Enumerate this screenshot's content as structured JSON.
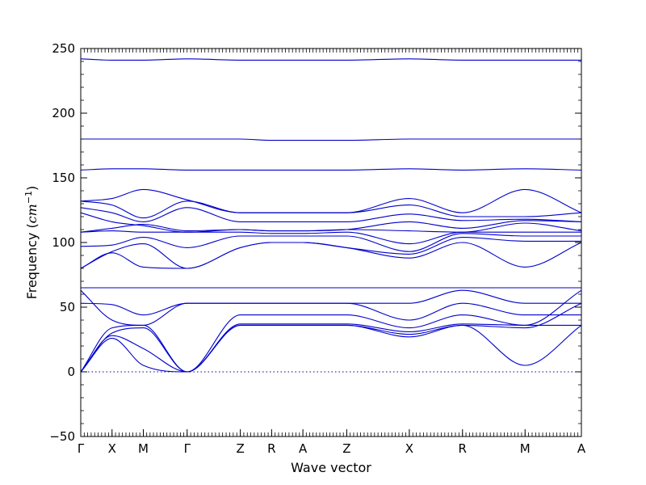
{
  "chart_data": {
    "type": "line",
    "title": "",
    "xlabel": "Wave vector",
    "ylabel": "Frequency (",
    "ylabel_unit": "cm",
    "ylabel_exp": "−1",
    "ylabel_close": ")",
    "ylim": [
      -50,
      250
    ],
    "yticks": [
      -50,
      0,
      50,
      100,
      150,
      200,
      250
    ],
    "xlim": [
      0,
      16
    ],
    "kpoints": [
      {
        "label": "Γ",
        "x": 0
      },
      {
        "label": "X",
        "x": 1
      },
      {
        "label": "M",
        "x": 2
      },
      {
        "label": "Γ",
        "x": 3.4
      },
      {
        "label": "Z",
        "x": 5.1
      },
      {
        "label": "R",
        "x": 6.1
      },
      {
        "label": "A",
        "x": 7.1
      },
      {
        "label": "Z",
        "x": 8.5
      },
      {
        "label": "X",
        "x": 10.5
      },
      {
        "label": "R",
        "x": 12.2
      },
      {
        "label": "M",
        "x": 14.2
      },
      {
        "label": "A",
        "x": 16
      }
    ],
    "zero_line": 0,
    "grid": false,
    "legend": "none",
    "line_color": "#0000cc",
    "zero_line_color": "#000088",
    "series": [
      {
        "x": [
          0,
          1,
          2,
          3.4,
          5.1,
          6.1,
          7.1,
          8.5,
          10.5,
          12.2,
          14.2,
          16
        ],
        "values": [
          0,
          26,
          5,
          0,
          36,
          36,
          36,
          36,
          27,
          36,
          5,
          36
        ]
      },
      {
        "x": [
          0,
          1,
          2,
          3.4,
          5.1,
          6.1,
          7.1,
          8.5,
          10.5,
          12.2,
          14.2,
          16
        ],
        "values": [
          0,
          28,
          18,
          0,
          36,
          36,
          36,
          36,
          29,
          36,
          34,
          53
        ]
      },
      {
        "x": [
          0,
          1,
          2,
          3.4,
          5.1,
          6.1,
          7.1,
          8.5,
          10.5,
          12.2,
          14.2,
          16
        ],
        "values": [
          0,
          30,
          34,
          0,
          37,
          37,
          37,
          37,
          31,
          37,
          36,
          63
        ]
      },
      {
        "x": [
          0,
          1,
          2,
          3.4,
          5.1,
          6.1,
          7.1,
          8.5,
          10.5,
          12.2,
          14.2,
          16
        ],
        "values": [
          0,
          34,
          36,
          0,
          44,
          44,
          44,
          44,
          34,
          44,
          36,
          36
        ]
      },
      {
        "x": [
          0,
          1,
          2,
          3.4,
          5.1,
          6.1,
          7.1,
          8.5,
          10.5,
          12.2,
          14.2,
          16
        ],
        "values": [
          63,
          40,
          36,
          53,
          53,
          53,
          53,
          53,
          40,
          53,
          44,
          44
        ]
      },
      {
        "x": [
          0,
          1,
          2,
          3.4,
          5.1,
          6.1,
          7.1,
          8.5,
          10.5,
          12.2,
          14.2,
          16
        ],
        "values": [
          53,
          52,
          44,
          53,
          53,
          53,
          53,
          53,
          53,
          63,
          53,
          53
        ]
      },
      {
        "x": [
          0,
          1,
          2,
          3.4,
          5.1,
          6.1,
          7.1,
          8.5,
          10.5,
          12.2,
          14.2,
          16
        ],
        "values": [
          65,
          65,
          65,
          65,
          65,
          65,
          65,
          65,
          65,
          65,
          65,
          65
        ]
      },
      {
        "x": [
          0,
          1,
          2,
          3.4,
          5.1,
          6.1,
          7.1,
          8.5,
          10.5,
          12.2,
          14.2,
          16
        ],
        "values": [
          80,
          92,
          81,
          80,
          96,
          100,
          100,
          96,
          88,
          100,
          81,
          100
        ]
      },
      {
        "x": [
          0,
          1,
          2,
          3.4,
          5.1,
          6.1,
          7.1,
          8.5,
          10.5,
          12.2,
          14.2,
          16
        ],
        "values": [
          80,
          93,
          99,
          80,
          96,
          100,
          100,
          96,
          91,
          104,
          101,
          101
        ]
      },
      {
        "x": [
          0,
          1,
          2,
          3.4,
          5.1,
          6.1,
          7.1,
          8.5,
          10.5,
          12.2,
          14.2,
          16
        ],
        "values": [
          97,
          98,
          104,
          96,
          105,
          105,
          105,
          105,
          93,
          107,
          105,
          105
        ]
      },
      {
        "x": [
          0,
          1,
          2,
          3.4,
          5.1,
          6.1,
          7.1,
          8.5,
          10.5,
          12.2,
          14.2,
          16
        ],
        "values": [
          108,
          109,
          108,
          108,
          108,
          107,
          107,
          108,
          99,
          108,
          108,
          108
        ]
      },
      {
        "x": [
          0,
          1,
          2,
          3.4,
          5.1,
          6.1,
          7.1,
          8.5,
          10.5,
          12.2,
          14.2,
          16
        ],
        "values": [
          108,
          111,
          114,
          109,
          110,
          109,
          109,
          110,
          109,
          108,
          115,
          109
        ]
      },
      {
        "x": [
          0,
          1,
          2,
          3.4,
          5.1,
          6.1,
          7.1,
          8.5,
          10.5,
          12.2,
          14.2,
          16
        ],
        "values": [
          123,
          116,
          113,
          108,
          110,
          109,
          109,
          110,
          116,
          111,
          117,
          116
        ]
      },
      {
        "x": [
          0,
          1,
          2,
          3.4,
          5.1,
          6.1,
          7.1,
          8.5,
          10.5,
          12.2,
          14.2,
          16
        ],
        "values": [
          127,
          123,
          116,
          127,
          116,
          116,
          116,
          116,
          122,
          117,
          118,
          116
        ]
      },
      {
        "x": [
          0,
          1,
          2,
          3.4,
          5.1,
          6.1,
          7.1,
          8.5,
          10.5,
          12.2,
          14.2,
          16
        ],
        "values": [
          132,
          129,
          119,
          132,
          123,
          123,
          123,
          123,
          129,
          120,
          120,
          123
        ]
      },
      {
        "x": [
          0,
          1,
          2,
          3.4,
          5.1,
          6.1,
          7.1,
          8.5,
          10.5,
          12.2,
          14.2,
          16
        ],
        "values": [
          132,
          134,
          141,
          133,
          123,
          123,
          123,
          123,
          134,
          123,
          141,
          123
        ]
      },
      {
        "x": [
          0,
          1,
          2,
          3.4,
          5.1,
          6.1,
          7.1,
          8.5,
          10.5,
          12.2,
          14.2,
          16
        ],
        "values": [
          156,
          157,
          157,
          156,
          156,
          156,
          156,
          156,
          157,
          156,
          157,
          156
        ]
      },
      {
        "x": [
          0,
          1,
          2,
          3.4,
          5.1,
          6.1,
          7.1,
          8.5,
          10.5,
          12.2,
          14.2,
          16
        ],
        "values": [
          180,
          180,
          180,
          180,
          180,
          179,
          179,
          179,
          180,
          180,
          180,
          180
        ]
      },
      {
        "x": [
          0,
          1,
          2,
          3.4,
          5.1,
          6.1,
          7.1,
          8.5,
          10.5,
          12.2,
          14.2,
          16
        ],
        "values": [
          242,
          241,
          241,
          242,
          241,
          241,
          241,
          241,
          242,
          241,
          241,
          241
        ]
      }
    ]
  }
}
